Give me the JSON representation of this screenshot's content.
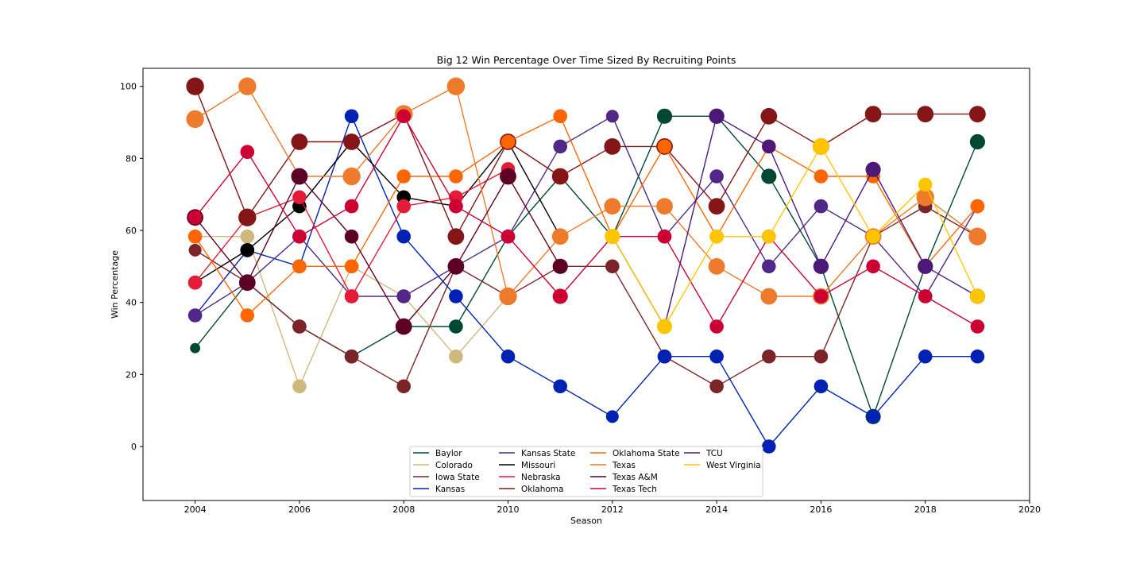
{
  "chart_data": {
    "type": "line",
    "title": "Big 12 Win Percentage Over Time Sized By Recruiting Points",
    "xlabel": "Season",
    "ylabel": "Win Percentage",
    "xlim": [
      2003,
      2020
    ],
    "ylim": [
      -15,
      105
    ],
    "xticks": [
      2004,
      2006,
      2008,
      2010,
      2012,
      2014,
      2016,
      2018,
      2020
    ],
    "yticks": [
      0,
      20,
      40,
      60,
      80,
      100
    ],
    "grid": false,
    "legend_position": "bottom-center",
    "marker_size_encoding": "Recruiting Points",
    "series": [
      {
        "name": "Baylor",
        "color": "#004834",
        "x": [
          2004,
          2005,
          2006,
          2007,
          2008,
          2009,
          2010,
          2011,
          2012,
          2013,
          2014,
          2015,
          2016,
          2017,
          2018,
          2019
        ],
        "y": [
          27.3,
          45.5,
          33.3,
          25.0,
          33.3,
          33.3,
          58.3,
          75.0,
          58.3,
          91.7,
          91.7,
          75.0,
          50.0,
          8.3,
          50.0,
          84.6
        ],
        "size": [
          0.3,
          0.6,
          0.6,
          0.6,
          0.6,
          0.6,
          0.6,
          0.7,
          0.6,
          0.7,
          0.7,
          0.7,
          0.7,
          0.7,
          0.7,
          0.7
        ]
      },
      {
        "name": "Colorado",
        "color": "#CFB87C",
        "x": [
          2004,
          2005,
          2006,
          2007,
          2008,
          2009,
          2010
        ],
        "y": [
          58.3,
          58.3,
          16.7,
          50.0,
          41.7,
          25.0,
          41.7
        ],
        "size": [
          0.6,
          0.6,
          0.6,
          0.6,
          0.6,
          0.6,
          0.6
        ]
      },
      {
        "name": "Iowa State",
        "color": "#7C2529",
        "x": [
          2004,
          2005,
          2006,
          2007,
          2008,
          2009,
          2010,
          2011,
          2012,
          2013,
          2014,
          2015,
          2016,
          2017,
          2018,
          2019
        ],
        "y": [
          54.5,
          45.5,
          33.3,
          25.0,
          16.7,
          50.0,
          41.7,
          50.0,
          50.0,
          25.0,
          16.7,
          25.0,
          25.0,
          58.3,
          66.7,
          58.3
        ],
        "size": [
          0.5,
          0.6,
          0.6,
          0.6,
          0.6,
          0.6,
          0.6,
          0.6,
          0.6,
          0.6,
          0.6,
          0.6,
          0.6,
          0.6,
          0.6,
          0.6
        ]
      },
      {
        "name": "Kansas",
        "color": "#0022B4",
        "x": [
          2004,
          2005,
          2006,
          2007,
          2008,
          2009,
          2010,
          2011,
          2012,
          2013,
          2014,
          2015,
          2016,
          2017,
          2018,
          2019
        ],
        "y": [
          36.4,
          54.5,
          50.0,
          91.7,
          58.3,
          41.7,
          25.0,
          16.7,
          8.3,
          25.0,
          25.0,
          0.0,
          16.7,
          8.3,
          25.0,
          25.0
        ],
        "size": [
          0.5,
          0.6,
          0.6,
          0.6,
          0.6,
          0.6,
          0.6,
          0.6,
          0.5,
          0.6,
          0.6,
          0.6,
          0.6,
          0.6,
          0.6,
          0.6
        ]
      },
      {
        "name": "Kansas State",
        "color": "#512888",
        "x": [
          2004,
          2005,
          2006,
          2007,
          2008,
          2009,
          2010,
          2011,
          2012,
          2013,
          2014,
          2015,
          2016,
          2017,
          2018,
          2019
        ],
        "y": [
          36.4,
          45.5,
          58.3,
          41.7,
          41.7,
          50.0,
          58.3,
          83.3,
          91.7,
          58.3,
          75.0,
          50.0,
          66.7,
          58.3,
          41.7,
          66.7
        ],
        "size": [
          0.6,
          0.6,
          0.6,
          0.6,
          0.6,
          0.6,
          0.6,
          0.6,
          0.5,
          0.6,
          0.6,
          0.6,
          0.6,
          0.6,
          0.6,
          0.6
        ]
      },
      {
        "name": "Missouri",
        "color": "#000000",
        "x": [
          2004,
          2005,
          2006,
          2007,
          2008,
          2009,
          2010,
          2011
        ],
        "y": [
          45.5,
          54.5,
          66.7,
          84.6,
          69.2,
          66.7,
          84.6,
          58.3
        ],
        "size": [
          0.6,
          0.6,
          0.6,
          0.6,
          0.6,
          0.6,
          0.6,
          0.6
        ]
      },
      {
        "name": "Nebraska",
        "color": "#E41C38",
        "x": [
          2004,
          2005,
          2006,
          2007,
          2008,
          2009,
          2010
        ],
        "y": [
          45.5,
          63.6,
          69.2,
          41.7,
          66.7,
          69.2,
          77.0
        ],
        "size": [
          0.6,
          0.6,
          0.6,
          0.6,
          0.6,
          0.6,
          0.6
        ]
      },
      {
        "name": "Oklahoma",
        "color": "#841617",
        "x": [
          2004,
          2005,
          2006,
          2007,
          2008,
          2009,
          2010,
          2011,
          2012,
          2013,
          2014,
          2015,
          2016,
          2017,
          2018,
          2019
        ],
        "y": [
          100.0,
          63.6,
          84.6,
          84.6,
          92.3,
          58.3,
          84.6,
          75.0,
          83.3,
          83.3,
          66.7,
          91.7,
          83.3,
          92.3,
          92.3,
          92.3
        ],
        "size": [
          0.9,
          0.9,
          0.8,
          0.8,
          0.9,
          0.8,
          0.8,
          0.8,
          0.8,
          0.8,
          0.8,
          0.8,
          0.8,
          0.8,
          0.8,
          0.8
        ]
      },
      {
        "name": "Oklahoma State",
        "color": "#FF6600",
        "x": [
          2004,
          2005,
          2006,
          2007,
          2008,
          2009,
          2010,
          2011,
          2012,
          2013,
          2014,
          2015,
          2016,
          2017,
          2018,
          2019
        ],
        "y": [
          58.3,
          36.4,
          50.0,
          50.0,
          75.0,
          75.0,
          84.6,
          91.7,
          58.3,
          83.3,
          58.3,
          83.3,
          75.0,
          75.0,
          50.0,
          66.7
        ],
        "size": [
          0.6,
          0.6,
          0.6,
          0.6,
          0.6,
          0.6,
          0.6,
          0.6,
          0.6,
          0.6,
          0.6,
          0.6,
          0.6,
          0.6,
          0.6,
          0.6
        ]
      },
      {
        "name": "Texas",
        "color": "#EE7A2B",
        "x": [
          2004,
          2005,
          2006,
          2007,
          2008,
          2009,
          2010,
          2011,
          2012,
          2013,
          2014,
          2015,
          2016,
          2017,
          2018,
          2019
        ],
        "y": [
          90.9,
          100.0,
          75.0,
          75.0,
          92.3,
          100.0,
          41.7,
          58.3,
          66.7,
          66.7,
          50.0,
          41.7,
          41.7,
          58.3,
          69.2,
          58.3
        ],
        "size": [
          0.9,
          0.9,
          0.8,
          0.9,
          0.9,
          0.9,
          0.9,
          0.8,
          0.8,
          0.8,
          0.8,
          0.8,
          0.8,
          0.8,
          0.9,
          0.9
        ]
      },
      {
        "name": "Texas A&M",
        "color": "#5C0025",
        "x": [
          2004,
          2005,
          2006,
          2007,
          2008,
          2009,
          2010,
          2011
        ],
        "y": [
          63.6,
          45.5,
          75.0,
          58.3,
          33.3,
          50.0,
          75.0,
          50.0
        ],
        "size": [
          0.8,
          0.8,
          0.8,
          0.6,
          0.8,
          0.8,
          0.8,
          0.7
        ]
      },
      {
        "name": "Texas Tech",
        "color": "#CC0033",
        "x": [
          2004,
          2005,
          2006,
          2007,
          2008,
          2009,
          2010,
          2011,
          2012,
          2013,
          2014,
          2015,
          2016,
          2017,
          2018,
          2019
        ],
        "y": [
          63.6,
          81.8,
          58.3,
          66.7,
          91.7,
          66.7,
          58.3,
          41.7,
          58.3,
          58.3,
          33.3,
          58.3,
          41.7,
          50.0,
          41.7,
          33.3
        ],
        "size": [
          0.6,
          0.6,
          0.6,
          0.6,
          0.6,
          0.6,
          0.6,
          0.7,
          0.6,
          0.6,
          0.6,
          0.6,
          0.6,
          0.6,
          0.6,
          0.6
        ]
      },
      {
        "name": "TCU",
        "color": "#4D1979",
        "x": [
          2012,
          2013,
          2014,
          2015,
          2016,
          2017,
          2018,
          2019
        ],
        "y": [
          58.3,
          33.3,
          91.7,
          83.3,
          50.0,
          76.9,
          50.0,
          41.7
        ],
        "size": [
          0.6,
          0.6,
          0.7,
          0.6,
          0.7,
          0.7,
          0.7,
          0.7
        ]
      },
      {
        "name": "West Virginia",
        "color": "#FFC600",
        "x": [
          2012,
          2013,
          2014,
          2015,
          2016,
          2017,
          2018,
          2019
        ],
        "y": [
          58.3,
          33.3,
          58.3,
          58.3,
          83.3,
          58.3,
          72.7,
          41.7
        ],
        "size": [
          0.7,
          0.7,
          0.6,
          0.6,
          0.8,
          0.6,
          0.6,
          0.7
        ]
      }
    ]
  }
}
